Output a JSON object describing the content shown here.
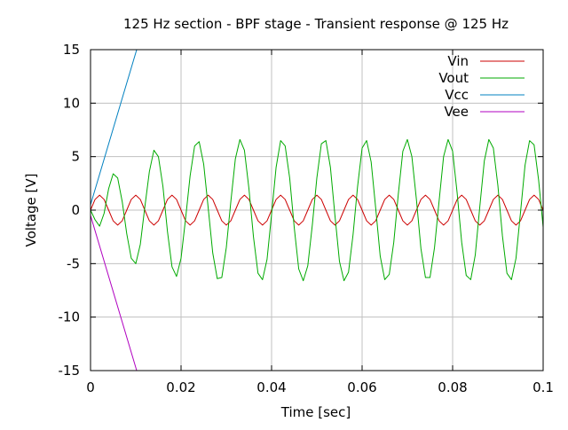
{
  "chart_data": {
    "type": "line",
    "title": "125 Hz section - BPF stage - Transient response @ 125 Hz",
    "xlabel": "Time [sec]",
    "ylabel": "Voltage [V]",
    "xlim": [
      0,
      0.1
    ],
    "ylim": [
      -15,
      15
    ],
    "x_ticks": [
      0,
      0.02,
      0.04,
      0.06,
      0.08,
      0.1
    ],
    "x_tick_labels": [
      "0",
      "0.02",
      "0.04",
      "0.06",
      "0.08",
      "0.1"
    ],
    "y_ticks": [
      -15,
      -10,
      -5,
      0,
      5,
      10,
      15
    ],
    "y_tick_labels": [
      "-15",
      "-10",
      "-5",
      "0",
      "5",
      "10",
      "15"
    ],
    "grid": true,
    "legend_position": "top-right",
    "series": [
      {
        "name": "Vin",
        "color": "#cc0000",
        "x": [
          0,
          0.001,
          0.002,
          0.003,
          0.004,
          0.005,
          0.006,
          0.007,
          0.008,
          0.009,
          0.01,
          0.011,
          0.012,
          0.013,
          0.014,
          0.015,
          0.016,
          0.017,
          0.018,
          0.019,
          0.02,
          0.021,
          0.022,
          0.023,
          0.024,
          0.025,
          0.026,
          0.027,
          0.028,
          0.029,
          0.03,
          0.031,
          0.032,
          0.033,
          0.034,
          0.035,
          0.036,
          0.037,
          0.038,
          0.039,
          0.04,
          0.041,
          0.042,
          0.043,
          0.044,
          0.045,
          0.046,
          0.047,
          0.048,
          0.049,
          0.05,
          0.051,
          0.052,
          0.053,
          0.054,
          0.055,
          0.056,
          0.057,
          0.058,
          0.059,
          0.06,
          0.061,
          0.062,
          0.063,
          0.064,
          0.065,
          0.066,
          0.067,
          0.068,
          0.069,
          0.07,
          0.071,
          0.072,
          0.073,
          0.074,
          0.075,
          0.076,
          0.077,
          0.078,
          0.079,
          0.08,
          0.081,
          0.082,
          0.083,
          0.084,
          0.085,
          0.086,
          0.087,
          0.088,
          0.089,
          0.09,
          0.091,
          0.092,
          0.093,
          0.094,
          0.095,
          0.096,
          0.097,
          0.098,
          0.099,
          0.1
        ],
        "values": [
          0,
          1.0,
          1.4,
          1.0,
          0,
          -1.0,
          -1.4,
          -1.0,
          0,
          1.0,
          1.4,
          1.0,
          0,
          -1.0,
          -1.4,
          -1.0,
          0,
          1.0,
          1.4,
          1.0,
          0,
          -1.0,
          -1.4,
          -1.0,
          0,
          1.0,
          1.4,
          1.0,
          0,
          -1.0,
          -1.4,
          -1.0,
          0,
          1.0,
          1.4,
          1.0,
          0,
          -1.0,
          -1.4,
          -1.0,
          0,
          1.0,
          1.4,
          1.0,
          0,
          -1.0,
          -1.4,
          -1.0,
          0,
          1.0,
          1.4,
          1.0,
          0,
          -1.0,
          -1.4,
          -1.0,
          0,
          1.0,
          1.4,
          1.0,
          0,
          -1.0,
          -1.4,
          -1.0,
          0,
          1.0,
          1.4,
          1.0,
          0,
          -1.0,
          -1.4,
          -1.0,
          0,
          1.0,
          1.4,
          1.0,
          0,
          -1.0,
          -1.4,
          -1.0,
          0,
          1.0,
          1.4,
          1.0,
          0,
          -1.0,
          -1.4,
          -1.0,
          0,
          1.0,
          1.4,
          1.0,
          0,
          -1.0,
          -1.4,
          -1.0,
          0,
          1.0,
          1.4,
          1.0,
          0
        ]
      },
      {
        "name": "Vout",
        "color": "#00aa00",
        "x": [
          0,
          0.001,
          0.002,
          0.003,
          0.004,
          0.005,
          0.006,
          0.007,
          0.008,
          0.009,
          0.01,
          0.011,
          0.012,
          0.013,
          0.014,
          0.015,
          0.016,
          0.017,
          0.018,
          0.019,
          0.02,
          0.021,
          0.022,
          0.023,
          0.024,
          0.025,
          0.026,
          0.027,
          0.028,
          0.029,
          0.03,
          0.031,
          0.032,
          0.033,
          0.034,
          0.035,
          0.036,
          0.037,
          0.038,
          0.039,
          0.04,
          0.041,
          0.042,
          0.043,
          0.044,
          0.045,
          0.046,
          0.047,
          0.048,
          0.049,
          0.05,
          0.051,
          0.052,
          0.053,
          0.054,
          0.055,
          0.056,
          0.057,
          0.058,
          0.059,
          0.06,
          0.061,
          0.062,
          0.063,
          0.064,
          0.065,
          0.066,
          0.067,
          0.068,
          0.069,
          0.07,
          0.071,
          0.072,
          0.073,
          0.074,
          0.075,
          0.076,
          0.077,
          0.078,
          0.079,
          0.08,
          0.081,
          0.082,
          0.083,
          0.084,
          0.085,
          0.086,
          0.087,
          0.088,
          0.089,
          0.09,
          0.091,
          0.092,
          0.093,
          0.094,
          0.095,
          0.096,
          0.097,
          0.098,
          0.099,
          0.1
        ],
        "values": [
          0,
          -0.9,
          -1.5,
          -0.3,
          2.0,
          3.4,
          3.0,
          0.8,
          -2.2,
          -4.5,
          -5.0,
          -3.2,
          0.3,
          3.6,
          5.6,
          5.0,
          2.2,
          -2.0,
          -5.3,
          -6.2,
          -4.5,
          -0.8,
          3.2,
          6.0,
          6.4,
          4.3,
          0.2,
          -4.0,
          -6.4,
          -6.3,
          -3.5,
          0.8,
          4.8,
          6.6,
          5.6,
          2.0,
          -2.5,
          -5.9,
          -6.5,
          -4.6,
          -0.4,
          4.0,
          6.5,
          6.0,
          3.0,
          -1.6,
          -5.5,
          -6.6,
          -5.2,
          -1.4,
          3.0,
          6.2,
          6.5,
          4.0,
          -0.5,
          -4.8,
          -6.6,
          -5.8,
          -2.3,
          2.2,
          5.8,
          6.5,
          4.5,
          0.2,
          -4.3,
          -6.5,
          -6.0,
          -3.0,
          1.5,
          5.5,
          6.6,
          5.0,
          1.0,
          -3.6,
          -6.3,
          -6.3,
          -3.5,
          0.8,
          5.0,
          6.6,
          5.5,
          1.6,
          -3.0,
          -6.1,
          -6.5,
          -4.2,
          0.3,
          4.6,
          6.6,
          5.8,
          2.3,
          -2.4,
          -5.9,
          -6.5,
          -4.5,
          -0.2,
          4.2,
          6.5,
          6.1,
          2.8,
          -1.6
        ]
      },
      {
        "name": "Vcc",
        "color": "#0080c0",
        "x": [
          0,
          0.0102
        ],
        "values": [
          0.5,
          15
        ]
      },
      {
        "name": "Vee",
        "color": "#b000c0",
        "x": [
          0,
          0.0102
        ],
        "values": [
          -0.5,
          -15
        ]
      }
    ]
  }
}
